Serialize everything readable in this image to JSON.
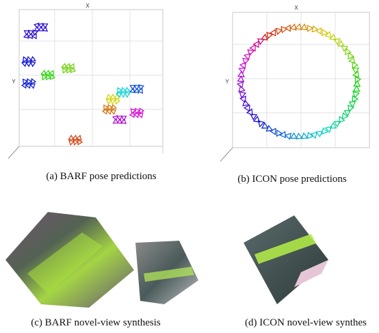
{
  "panels": [
    {
      "caption": "(a) BARF pose predictions",
      "x_axis_label": "X",
      "y_axis_label": "Y"
    },
    {
      "caption": "(b) ICON pose predictions",
      "x_axis_label": "X",
      "y_axis_label": "Y"
    },
    {
      "caption": "(c) BARF novel-view synthesis"
    },
    {
      "caption": "(d) ICON novel-view synthes"
    }
  ]
}
